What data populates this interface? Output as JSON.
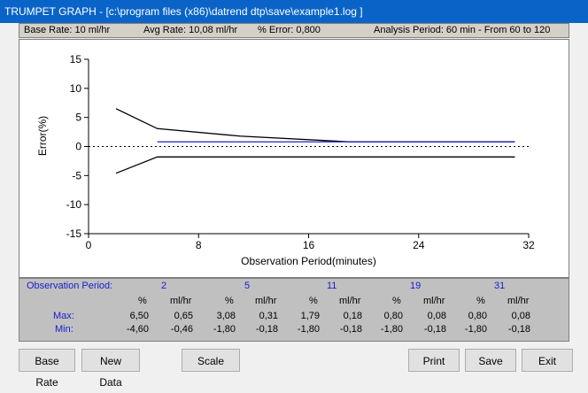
{
  "window": {
    "title": "TRUMPET GRAPH - [c:\\program files (x86)\\datrend dtp\\save\\example1.log ]"
  },
  "info": {
    "base_rate": "Base Rate:  10 ml/hr",
    "avg_rate": "Avg Rate:  10,08 ml/hr",
    "error": "% Error:  0,800",
    "analysis_period": "Analysis Period:  60 min  -  From 60 to 120"
  },
  "chart_data": {
    "type": "line",
    "xlabel": "Observation Period(minutes)",
    "ylabel": "Error(%)",
    "xlim": [
      0,
      32
    ],
    "ylim": [
      -15,
      15
    ],
    "x_ticks": [
      0,
      8,
      16,
      24,
      32
    ],
    "x_tick_labels": [
      "0",
      "8",
      "16",
      "24",
      "32"
    ],
    "y_ticks": [
      15,
      10,
      5,
      0,
      -5,
      -10,
      -15
    ],
    "y_tick_labels": [
      "15",
      "10",
      "5",
      "0",
      "-5",
      "-10",
      "-15"
    ],
    "zero_line": "dotted",
    "series": [
      {
        "kind": "max",
        "color": "#000000",
        "x": [
          2,
          5,
          11,
          19,
          31
        ],
        "y": [
          6.5,
          3.08,
          1.79,
          0.8,
          0.8
        ]
      },
      {
        "kind": "min",
        "color": "#000000",
        "x": [
          2,
          5,
          11,
          19,
          31
        ],
        "y": [
          -4.6,
          -1.8,
          -1.8,
          -1.8,
          -1.8
        ]
      },
      {
        "kind": "overall",
        "color": "#2020c0",
        "x": [
          5,
          31
        ],
        "y": [
          0.8,
          0.8
        ]
      }
    ]
  },
  "stats": {
    "label": "Observation Period:",
    "max_label": "Max:",
    "min_label": "Min:",
    "pct_header": "%",
    "mlhr_header": "ml/hr",
    "periods": [
      {
        "period": "2",
        "max_pct": "6,50",
        "max_mlhr": "0,65",
        "min_pct": "-4,60",
        "min_mlhr": "-0,46"
      },
      {
        "period": "5",
        "max_pct": "3,08",
        "max_mlhr": "0,31",
        "min_pct": "-1,80",
        "min_mlhr": "-0,18"
      },
      {
        "period": "11",
        "max_pct": "1,79",
        "max_mlhr": "0,18",
        "min_pct": "-1,80",
        "min_mlhr": "-0,18"
      },
      {
        "period": "19",
        "max_pct": "0,80",
        "max_mlhr": "0,08",
        "min_pct": "-1,80",
        "min_mlhr": "-0,18"
      },
      {
        "period": "31",
        "max_pct": "0,80",
        "max_mlhr": "0,08",
        "min_pct": "-1,80",
        "min_mlhr": "-0,18"
      }
    ]
  },
  "buttons": {
    "base_rate": "Base Rate",
    "new_data": "New Data",
    "scale": "Scale",
    "print": "Print",
    "save": "Save",
    "exit": "Exit"
  }
}
